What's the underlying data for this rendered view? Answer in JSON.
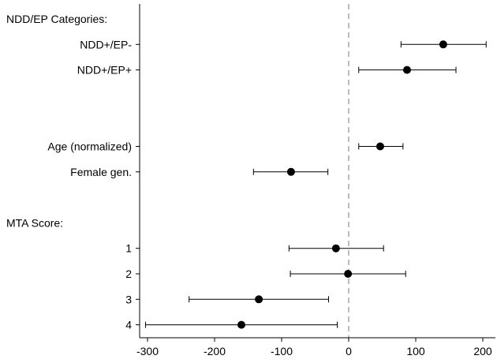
{
  "chart_data": {
    "type": "scatter",
    "subtype": "coefficient-plot-with-error-bars",
    "title": "",
    "xlabel": "",
    "ylabel": "",
    "xlim": [
      -310,
      215
    ],
    "x_ticks": [
      -300,
      -200,
      -100,
      0,
      100,
      200
    ],
    "reference_line": {
      "x": 0,
      "style": "dashed",
      "color": "#a0a0a0"
    },
    "grid": false,
    "legend": "none",
    "colors": {
      "marker": "#000000",
      "axis": "#000000",
      "reference": "#a0a0a0"
    },
    "rows": [
      {
        "label": "NDD/EP Categories:",
        "kind": "header"
      },
      {
        "label": "NDD+/EP-",
        "kind": "point",
        "estimate": 141,
        "ci_low": 78,
        "ci_high": 205
      },
      {
        "label": "NDD+/EP+",
        "kind": "point",
        "estimate": 87,
        "ci_low": 15,
        "ci_high": 160
      },
      {
        "label": "",
        "kind": "spacer"
      },
      {
        "label": "",
        "kind": "spacer"
      },
      {
        "label": "Age (normalized)",
        "kind": "point",
        "estimate": 47,
        "ci_low": 15,
        "ci_high": 81
      },
      {
        "label": "Female gen.",
        "kind": "point",
        "estimate": -86,
        "ci_low": -142,
        "ci_high": -31
      },
      {
        "label": "",
        "kind": "spacer"
      },
      {
        "label": "MTA Score:",
        "kind": "header"
      },
      {
        "label": "1",
        "kind": "point",
        "estimate": -19,
        "ci_low": -89,
        "ci_high": 52
      },
      {
        "label": "2",
        "kind": "point",
        "estimate": -1,
        "ci_low": -87,
        "ci_high": 85
      },
      {
        "label": "3",
        "kind": "point",
        "estimate": -134,
        "ci_low": -238,
        "ci_high": -30
      },
      {
        "label": "4",
        "kind": "point",
        "estimate": -160,
        "ci_low": -303,
        "ci_high": -17
      }
    ]
  }
}
